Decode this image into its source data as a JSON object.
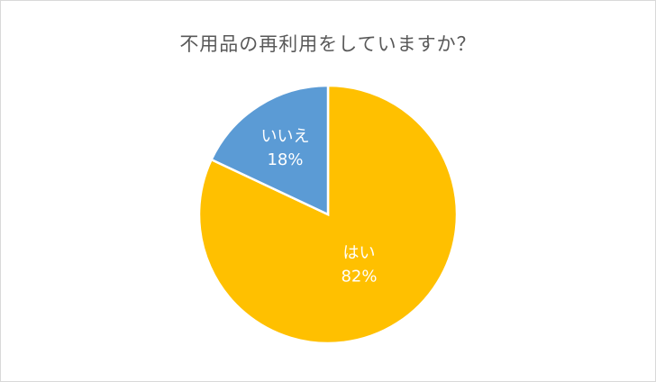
{
  "chart_data": {
    "type": "pie",
    "title": "不用品の再利用をしていますか？",
    "slices": [
      {
        "label": "はい",
        "value": 82,
        "value_label": "82%",
        "color": "#ffc000"
      },
      {
        "label": "いいえ",
        "value": 18,
        "value_label": "18%",
        "color": "#5b9bd5"
      }
    ],
    "start_angle_deg": 0,
    "direction": "clockwise",
    "legend": "none",
    "data_labels": "inside"
  }
}
